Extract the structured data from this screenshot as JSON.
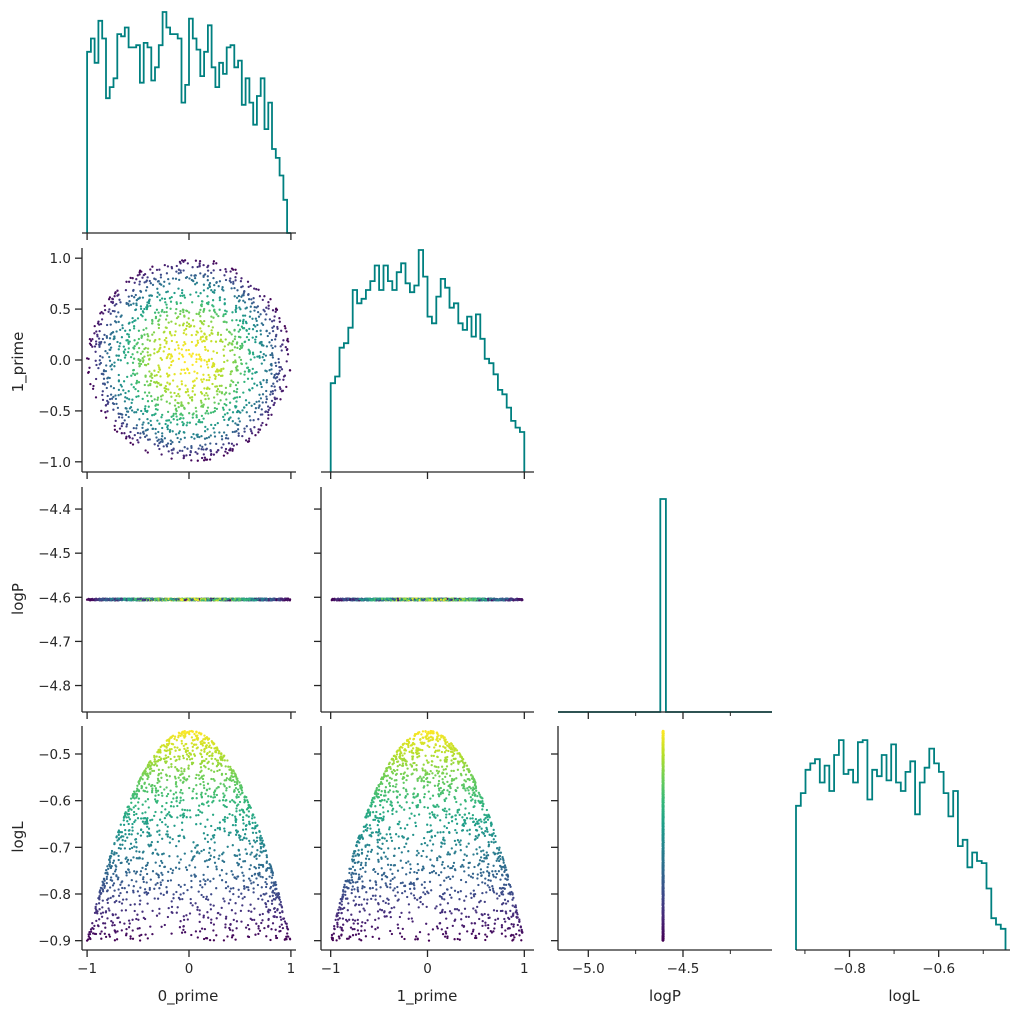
{
  "colors": {
    "hist": "#008080",
    "axis": "#262626",
    "colormap": "viridis"
  },
  "chart_data": {
    "type": "scatter",
    "variables": [
      "0_prime",
      "1_prime",
      "logP",
      "logL"
    ],
    "axis_labels": {
      "x": [
        "0_prime",
        "1_prime",
        "logP",
        "logL"
      ],
      "y": [
        "",
        "1_prime",
        "logP",
        "logL"
      ]
    },
    "ranges": {
      "0_prime": [
        -1.05,
        1.05
      ],
      "1_prime": [
        -1.1,
        1.1
      ],
      "logP": [
        -4.86,
        -4.35
      ],
      "logL": [
        -0.92,
        -0.44
      ],
      "logP_hist_x": [
        -5.16,
        -4.03
      ]
    },
    "ticks": {
      "0_prime": [
        -1,
        0,
        1
      ],
      "1_prime": [
        -1,
        0,
        1
      ],
      "1_prime_y": [
        -1.0,
        -0.5,
        0.0,
        0.5,
        1.0
      ],
      "logP_y": [
        -4.4,
        -4.5,
        -4.6,
        -4.7,
        -4.8
      ],
      "logP_x": [
        -5.0,
        -4.5
      ],
      "logP_x_minor": [
        -4.75,
        -4.25
      ],
      "logL_y": [
        -0.5,
        -0.6,
        -0.7,
        -0.8,
        -0.9
      ],
      "logL_x": [
        -0.8,
        -0.6
      ],
      "logL_x_minor": [
        -0.9,
        -0.7,
        -0.5
      ]
    },
    "tick_labels": {
      "0_prime": [
        "−1",
        "0",
        "1"
      ],
      "1_prime": [
        "−1",
        "0",
        "1"
      ],
      "1_prime_y": [
        "−1.0",
        "−0.5",
        "0.0",
        "0.5",
        "1.0"
      ],
      "logP_y": [
        "−4.4",
        "−4.5",
        "−4.6",
        "−4.7",
        "−4.8"
      ],
      "logP_x": [
        "−5.0",
        "−4.5"
      ],
      "logL_y": [
        "−0.5",
        "−0.6",
        "−0.7",
        "−0.8",
        "−0.9"
      ],
      "logL_x": [
        "−0.8",
        "−0.6"
      ]
    },
    "logP_value": -4.605,
    "scatter_model": "logL = -0.45 * (0_prime^2 + 1_prime^2) - 0.45 inside unit circle; color = logL (viridis)",
    "histograms": {
      "0_prime": {
        "range": [
          -1,
          1
        ],
        "counts": [
          0.82,
          0.88,
          0.77,
          0.96,
          0.88,
          0.61,
          0.66,
          0.7,
          0.9,
          0.89,
          0.93,
          0.84,
          0.84,
          0.85,
          0.68,
          0.86,
          0.84,
          0.69,
          0.75,
          0.85,
          1.0,
          0.93,
          0.9,
          0.9,
          0.88,
          0.59,
          0.67,
          0.97,
          0.88,
          0.83,
          0.71,
          0.82,
          0.94,
          0.75,
          0.66,
          0.77,
          0.72,
          0.84,
          0.85,
          0.75,
          0.78,
          0.58,
          0.7,
          0.59,
          0.49,
          0.62,
          0.7,
          0.47,
          0.59,
          0.38,
          0.34,
          0.26,
          0.15,
          0.0
        ]
      },
      "1_prime": {
        "range": [
          -1,
          1
        ],
        "counts": [
          0.4,
          0.43,
          0.56,
          0.58,
          0.65,
          0.82,
          0.76,
          0.78,
          0.82,
          0.86,
          0.93,
          0.82,
          0.93,
          0.86,
          0.82,
          0.9,
          0.94,
          0.85,
          0.81,
          0.84,
          1.0,
          0.88,
          0.7,
          0.67,
          0.79,
          0.87,
          0.83,
          0.74,
          0.76,
          0.67,
          0.64,
          0.7,
          0.61,
          0.71,
          0.6,
          0.51,
          0.49,
          0.44,
          0.37,
          0.35,
          0.29,
          0.23,
          0.2,
          0.18
        ]
      },
      "logP": {
        "range": [
          -5.16,
          -4.03
        ],
        "spike_x": [
          -4.62,
          -4.59
        ],
        "spike_height": 1.0
      },
      "logL": {
        "range": [
          -0.92,
          -0.45
        ],
        "counts": [
          0.68,
          0.74,
          0.85,
          0.88,
          0.9,
          0.79,
          0.87,
          0.75,
          0.92,
          0.99,
          0.83,
          0.85,
          0.79,
          0.98,
          0.99,
          0.71,
          0.85,
          0.82,
          0.92,
          0.8,
          0.97,
          0.79,
          0.75,
          0.84,
          0.89,
          0.64,
          0.79,
          0.86,
          0.95,
          0.88,
          0.84,
          0.74,
          0.63,
          0.75,
          0.49,
          0.52,
          0.39,
          0.46,
          0.42,
          0.41,
          0.29,
          0.15,
          0.12,
          0.1
        ]
      }
    }
  }
}
